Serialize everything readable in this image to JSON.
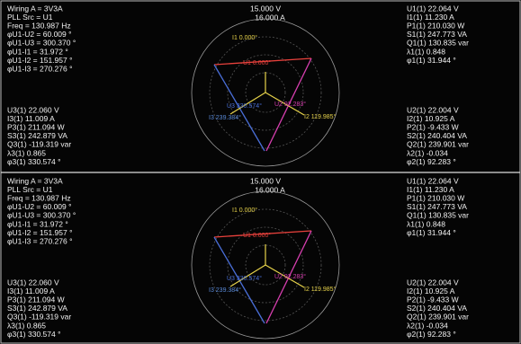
{
  "panels": [
    {
      "info": [
        "Wiring A = 3V3A",
        "PLL Src = U1",
        "Freq = 130.987 Hz",
        "φU1-U2 = 60.009 °",
        "φU1-U3 = 300.370 °",
        "φU1-I1 = 31.972 °",
        "φU1-I2 = 151.957 °",
        "φU1-I3 = 270.276 °"
      ],
      "scale": [
        "15.000 V",
        "16.000 A"
      ],
      "phase1": [
        "U1(1) 22.064 V",
        "I1(1) 11.230 A",
        "P1(1) 210.030 W",
        "S1(1) 247.773 VA",
        "Q1(1) 130.835 var",
        "λ1(1) 0.848",
        "φ1(1) 31.944 °"
      ],
      "phase3": [
        "U3(1) 22.060 V",
        "I3(1) 11.009 A",
        "P3(1) 211.094 W",
        "S3(1) 242.879 VA",
        "Q3(1) -119.319 var",
        "λ3(1) 0.865",
        "φ3(1) 330.574 °"
      ],
      "phase2": [
        "U2(1) 22.004 V",
        "I2(1) 10.925 A",
        "P2(1) -9.433 W",
        "S2(1) 240.404 VA",
        "Q2(1) 239.901 var",
        "λ2(1) -0.034",
        "φ2(1) 92.283 °"
      ],
      "phasors": [
        "I1 0.000°",
        "U1 0.000°",
        "U3 330.574°",
        "U2 92.283°",
        "I2 119.985°",
        "I3 239.384°"
      ]
    },
    {
      "info": [
        "Wiring A = 3V3A",
        "PLL Src = U1",
        "Freq = 130.987 Hz",
        "φU1-U2 = 60.009 °",
        "φU1-U3 = 300.370 °",
        "φU1-I1 = 31.972 °",
        "φU1-I2 = 151.957 °",
        "φU1-I3 = 270.276 °"
      ],
      "scale": [
        "15.000 V",
        "16.000 A"
      ],
      "phase1": [
        "U1(1) 22.064 V",
        "I1(1) 11.230 A",
        "P1(1) 210.030 W",
        "S1(1) 247.773 VA",
        "Q1(1) 130.835 var",
        "λ1(1) 0.848",
        "φ1(1) 31.944 °"
      ],
      "phase3": [
        "U3(1) 22.060 V",
        "I3(1) 11.009 A",
        "P3(1) 211.094 W",
        "S3(1) 242.879 VA",
        "Q3(1) -119.319 var",
        "λ3(1) 0.865",
        "φ3(1) 330.574 °"
      ],
      "phase2": [
        "U2(1) 22.004 V",
        "I2(1) 10.925 A",
        "P2(1) -9.433 W",
        "S2(1) 240.404 VA",
        "Q2(1) 239.901 var",
        "λ2(1) -0.034",
        "φ2(1) 92.283 °"
      ],
      "phasors": [
        "I1 0.000°",
        "U1 0.000°",
        "U3 330.574°",
        "U2 92.283°",
        "I2 119.985°",
        "I3 239.384°"
      ]
    }
  ]
}
